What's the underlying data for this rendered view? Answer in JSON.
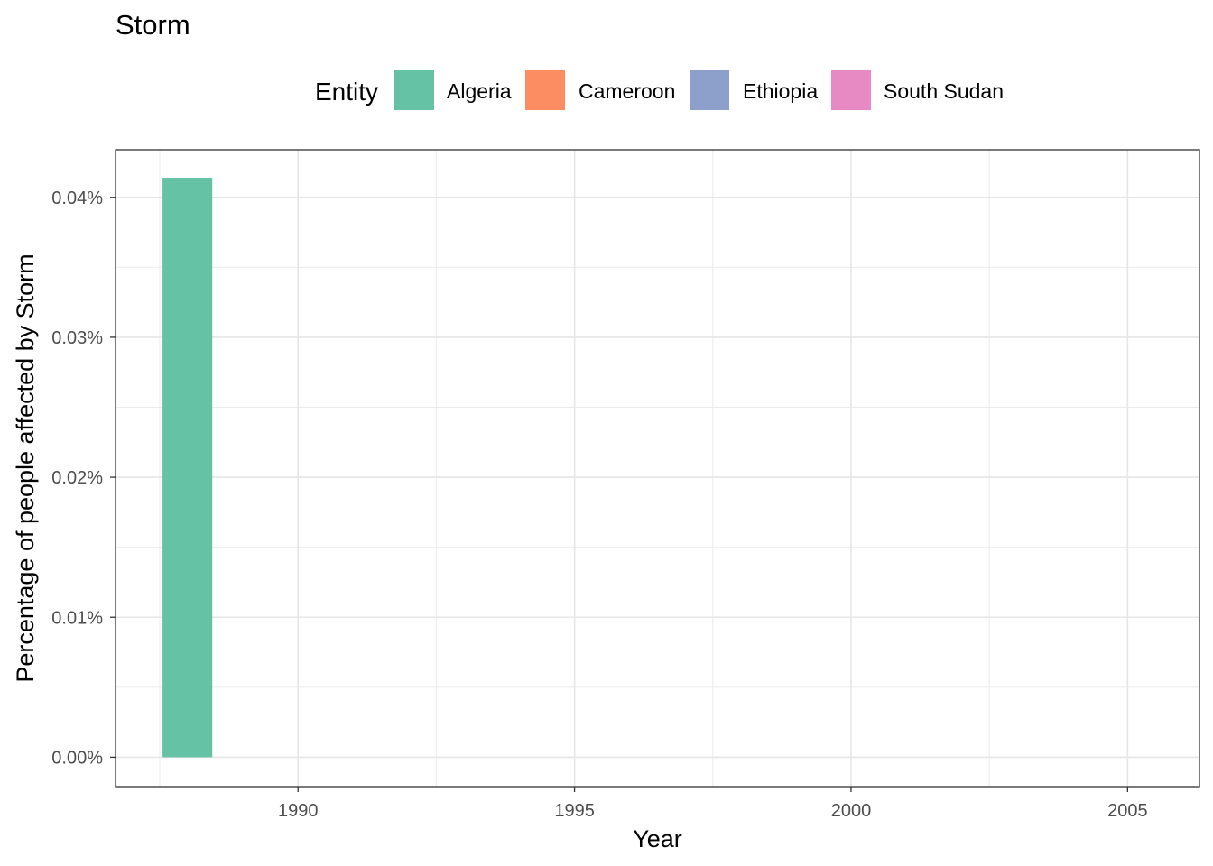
{
  "chart_data": {
    "type": "bar",
    "title": "Storm",
    "xlabel": "Year",
    "ylabel": "Percentage of people affected by Storm",
    "legend_title": "Entity",
    "legend_position": "top",
    "grid": true,
    "xlim": [
      1986.7,
      2006.3
    ],
    "ylim": [
      -0.0021,
      0.0434
    ],
    "x_ticks": [
      1990,
      1995,
      2000,
      2005
    ],
    "x_tick_labels": [
      "1990",
      "1995",
      "2000",
      "2005"
    ],
    "y_ticks": [
      0,
      0.01,
      0.02,
      0.03,
      0.04
    ],
    "y_tick_labels": [
      "0.00%",
      "0.01%",
      "0.02%",
      "0.03%",
      "0.04%"
    ],
    "series": [
      {
        "name": "Algeria",
        "color": "#66c2a5",
        "x": [
          1988
        ],
        "values": [
          0.0414
        ]
      },
      {
        "name": "Cameroon",
        "color": "#fc8d62",
        "x": [],
        "values": []
      },
      {
        "name": "Ethiopia",
        "color": "#8da0cb",
        "x": [],
        "values": []
      },
      {
        "name": "South Sudan",
        "color": "#e78ac3",
        "x": [],
        "values": []
      }
    ]
  }
}
